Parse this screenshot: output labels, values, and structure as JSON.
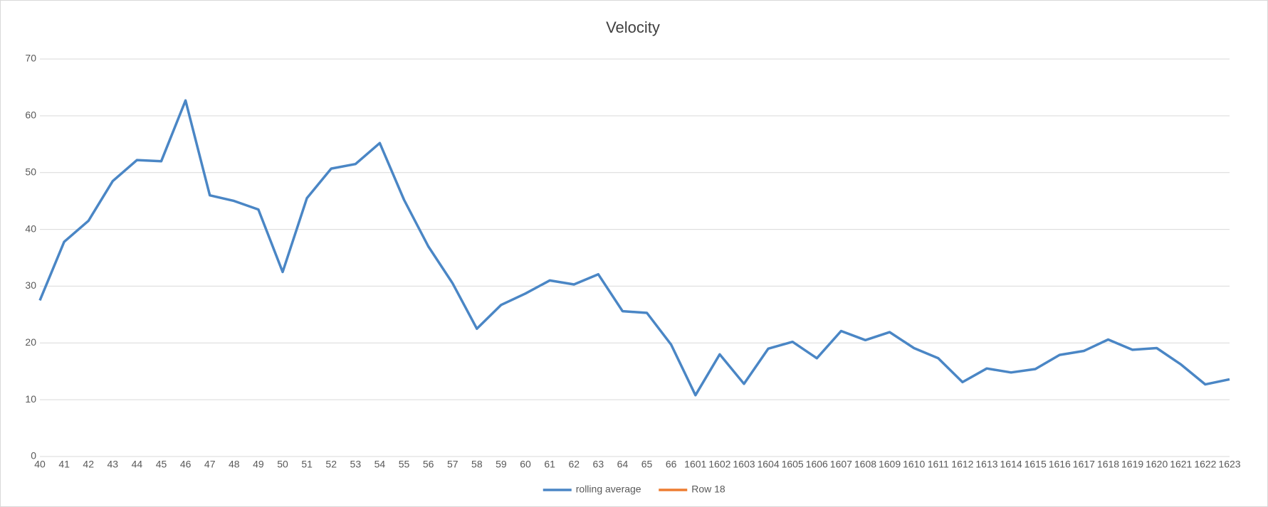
{
  "chart_data": {
    "type": "line",
    "title": "Velocity",
    "categories": [
      "40",
      "41",
      "42",
      "43",
      "44",
      "45",
      "46",
      "47",
      "48",
      "49",
      "50",
      "51",
      "52",
      "53",
      "54",
      "55",
      "56",
      "57",
      "58",
      "59",
      "60",
      "61",
      "62",
      "63",
      "64",
      "65",
      "66",
      "1601",
      "1602",
      "1603",
      "1604",
      "1605",
      "1606",
      "1607",
      "1608",
      "1609",
      "1610",
      "1611",
      "1612",
      "1613",
      "1614",
      "1615",
      "1616",
      "1617",
      "1618",
      "1619",
      "1620",
      "1621",
      "1622",
      "1623"
    ],
    "series": [
      {
        "name": "rolling average",
        "color": "#4a86c5",
        "values": [
          27.5,
          37.8,
          41.5,
          48.5,
          52.2,
          52,
          62.7,
          46,
          45,
          43.5,
          32.5,
          45.5,
          50.7,
          51.5,
          55.2,
          45.2,
          37,
          30.5,
          22.5,
          26.7,
          28.7,
          31,
          30.3,
          32.1,
          25.6,
          25.3,
          19.7,
          10.8,
          18,
          12.8,
          19,
          20.2,
          17.3,
          22.1,
          20.5,
          21.9,
          19.1,
          17.3,
          13.1,
          15.5,
          14.8,
          15.4,
          17.9,
          18.6,
          20.6,
          18.8,
          19.1,
          16.2,
          12.7,
          13.6
        ]
      },
      {
        "name": "Row 18",
        "color": "#ed7d31",
        "values": [
          null,
          null,
          null,
          null,
          null,
          null,
          null,
          null,
          null,
          null,
          null,
          null,
          null,
          null,
          null,
          null,
          null,
          null,
          null,
          null,
          null,
          null,
          null,
          null,
          null,
          null,
          null,
          null,
          null,
          null,
          null,
          null,
          null,
          null,
          null,
          null,
          null,
          null,
          null,
          null,
          null,
          null,
          null,
          null,
          null,
          null,
          null,
          null,
          null,
          null
        ]
      }
    ],
    "ylim": [
      0,
      70
    ],
    "yticks": [
      0,
      10,
      20,
      30,
      40,
      50,
      60,
      70
    ],
    "grid": true,
    "legend": "bottom"
  }
}
